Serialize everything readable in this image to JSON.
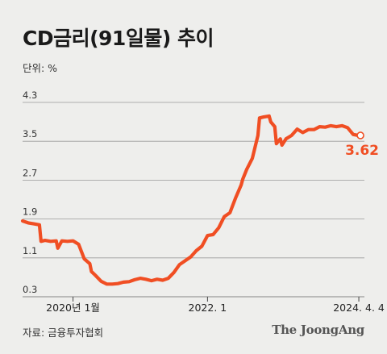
{
  "title": "CD금리(91일물) 추이",
  "unit_label": "단위: %",
  "source": "자료: 금융투자협회",
  "brand": "The JoongAng",
  "colors": {
    "line": "#f04e23",
    "grid": "#9a9a9a",
    "background": "#eeeeec"
  },
  "chart_data": {
    "type": "line",
    "title": "CD금리(91일물) 추이",
    "ylabel": "단위: %",
    "ylim": [
      0.3,
      4.3
    ],
    "yticks": [
      "0.3",
      "1.1",
      "1.9",
      "2.7",
      "3.5",
      "4.3"
    ],
    "xlim": [
      "2019-04",
      "2024-05"
    ],
    "xtick_labels": [
      {
        "x": "2020-01",
        "label": "2020년 1월"
      },
      {
        "x": "2022-01",
        "label": "2022. 1"
      },
      {
        "x": "2024-04",
        "label": "2024. 4. 4"
      }
    ],
    "grid": true,
    "end_label": "3.62",
    "series": [
      {
        "x": [
          "2019-04",
          "2019-05",
          "2019-06",
          "2019-07",
          "2019-07",
          "2019-08",
          "2019-09",
          "2019-10",
          "2019-10",
          "2019-11",
          "2019-12",
          "2020-01",
          "2020-02",
          "2020-03",
          "2020-04",
          "2020-04",
          "2020-05",
          "2020-06",
          "2020-07",
          "2020-08",
          "2020-09",
          "2020-10",
          "2020-11",
          "2020-12",
          "2021-01",
          "2021-02",
          "2021-03",
          "2021-04",
          "2021-05",
          "2021-06",
          "2021-07",
          "2021-08",
          "2021-09",
          "2021-10",
          "2021-11",
          "2021-12",
          "2022-01",
          "2022-02",
          "2022-03",
          "2022-04",
          "2022-05",
          "2022-06",
          "2022-07",
          "2022-07",
          "2022-08",
          "2022-09",
          "2022-10",
          "2022-10",
          "2022-11",
          "2022-12",
          "2022-12",
          "2023-01",
          "2023-01",
          "2023-02",
          "2023-02",
          "2023-03",
          "2023-04",
          "2023-05",
          "2023-06",
          "2023-07",
          "2023-08",
          "2023-09",
          "2023-10",
          "2023-11",
          "2023-12",
          "2024-01",
          "2024-02",
          "2024-03",
          "2024-04"
        ],
        "y": [
          1.86,
          1.82,
          1.8,
          1.78,
          1.44,
          1.46,
          1.44,
          1.45,
          1.3,
          1.45,
          1.44,
          1.45,
          1.38,
          1.08,
          0.98,
          0.82,
          0.74,
          0.62,
          0.56,
          0.56,
          0.57,
          0.6,
          0.61,
          0.65,
          0.68,
          0.66,
          0.63,
          0.66,
          0.64,
          0.68,
          0.8,
          0.96,
          1.04,
          1.12,
          1.25,
          1.34,
          1.56,
          1.58,
          1.72,
          1.95,
          2.03,
          2.33,
          2.6,
          2.72,
          2.92,
          3.15,
          3.62,
          3.98,
          4.0,
          4.02,
          3.9,
          3.8,
          3.45,
          3.55,
          3.42,
          3.55,
          3.62,
          3.75,
          3.68,
          3.74,
          3.74,
          3.8,
          3.79,
          3.82,
          3.8,
          3.82,
          3.78,
          3.64,
          3.62
        ]
      }
    ]
  }
}
